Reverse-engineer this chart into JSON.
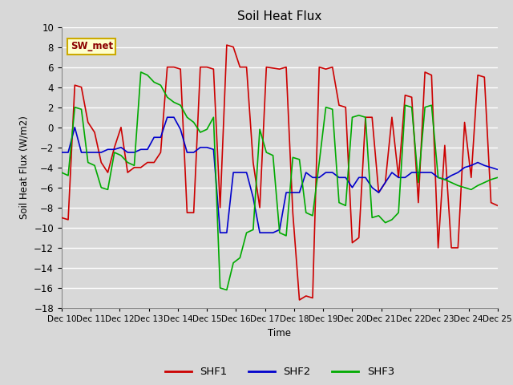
{
  "title": "Soil Heat Flux",
  "ylabel": "Soil Heat Flux (W/m2)",
  "xlabel": "Time",
  "ylim": [
    -18,
    10
  ],
  "yticks": [
    -18,
    -16,
    -14,
    -12,
    -10,
    -8,
    -6,
    -4,
    -2,
    0,
    2,
    4,
    6,
    8,
    10
  ],
  "background_color": "#d8d8d8",
  "grid_color": "#ffffff",
  "annotation_text": "SW_met",
  "annotation_bg": "#ffffcc",
  "annotation_border": "#ccaa00",
  "colors": {
    "SHF1": "#cc0000",
    "SHF2": "#0000cc",
    "SHF3": "#00aa00"
  },
  "x_labels": [
    "Dec 10",
    "Dec 11",
    "Dec 12",
    "Dec 13",
    "Dec 14",
    "Dec 15",
    "Dec 16",
    "Dec 17",
    "Dec 18",
    "Dec 19",
    "Dec 20",
    "Dec 21",
    "Dec 22",
    "Dec 23",
    "Dec 24",
    "Dec 25"
  ],
  "SHF1": [
    -9.0,
    -9.2,
    4.2,
    4.0,
    0.5,
    -0.5,
    -3.5,
    -4.5,
    -2.0,
    0.0,
    -4.5,
    -4.0,
    -4.0,
    -3.5,
    -3.5,
    -2.5,
    6.0,
    6.0,
    5.8,
    -8.5,
    -8.5,
    6.0,
    6.0,
    5.8,
    -8.0,
    8.2,
    8.0,
    6.0,
    6.0,
    -3.5,
    -8.0,
    6.0,
    5.9,
    5.8,
    6.0,
    -8.5,
    -17.2,
    -16.8,
    -17.0,
    6.0,
    5.8,
    6.0,
    2.2,
    2.0,
    -11.5,
    -11.0,
    1.0,
    1.0,
    -6.5,
    -5.5,
    1.0,
    -5.0,
    3.2,
    3.0,
    -7.5,
    5.5,
    5.2,
    -12.0,
    -1.8,
    -12.0,
    -12.0,
    0.5,
    -5.0,
    5.2,
    5.0,
    -7.5,
    -7.8
  ],
  "SHF2": [
    -2.5,
    -2.5,
    0.0,
    -2.5,
    -2.5,
    -2.5,
    -2.5,
    -2.2,
    -2.2,
    -2.0,
    -2.5,
    -2.5,
    -2.2,
    -2.2,
    -1.0,
    -1.0,
    1.0,
    1.0,
    -0.2,
    -2.5,
    -2.5,
    -2.0,
    -2.0,
    -2.2,
    -10.5,
    -10.5,
    -4.5,
    -4.5,
    -4.5,
    -7.0,
    -10.5,
    -10.5,
    -10.5,
    -10.2,
    -6.5,
    -6.5,
    -6.5,
    -4.5,
    -5.0,
    -5.0,
    -4.5,
    -4.5,
    -5.0,
    -5.0,
    -6.0,
    -5.0,
    -5.0,
    -6.0,
    -6.5,
    -5.5,
    -4.5,
    -5.0,
    -5.0,
    -4.5,
    -4.5,
    -4.5,
    -4.5,
    -5.0,
    -5.2,
    -4.8,
    -4.5,
    -4.0,
    -3.8,
    -3.5,
    -3.8,
    -4.0,
    -4.2
  ],
  "SHF3": [
    -4.5,
    -4.8,
    2.0,
    1.8,
    -3.5,
    -3.8,
    -6.0,
    -6.2,
    -2.5,
    -2.8,
    -3.5,
    -3.8,
    5.5,
    5.2,
    4.5,
    4.2,
    3.0,
    2.5,
    2.2,
    1.0,
    0.5,
    -0.5,
    -0.2,
    1.0,
    -16.0,
    -16.2,
    -13.5,
    -13.0,
    -10.5,
    -10.2,
    -0.2,
    -2.5,
    -2.8,
    -10.5,
    -10.8,
    -3.0,
    -3.2,
    -8.5,
    -8.8,
    -3.5,
    2.0,
    1.8,
    -7.5,
    -7.8,
    1.0,
    1.2,
    1.0,
    -9.0,
    -8.8,
    -9.5,
    -9.2,
    -8.5,
    2.2,
    2.0,
    -5.5,
    2.0,
    2.2,
    -5.0,
    -5.2,
    -5.5,
    -5.8,
    -6.0,
    -6.2,
    -5.8,
    -5.5,
    -5.2,
    -5.0
  ]
}
